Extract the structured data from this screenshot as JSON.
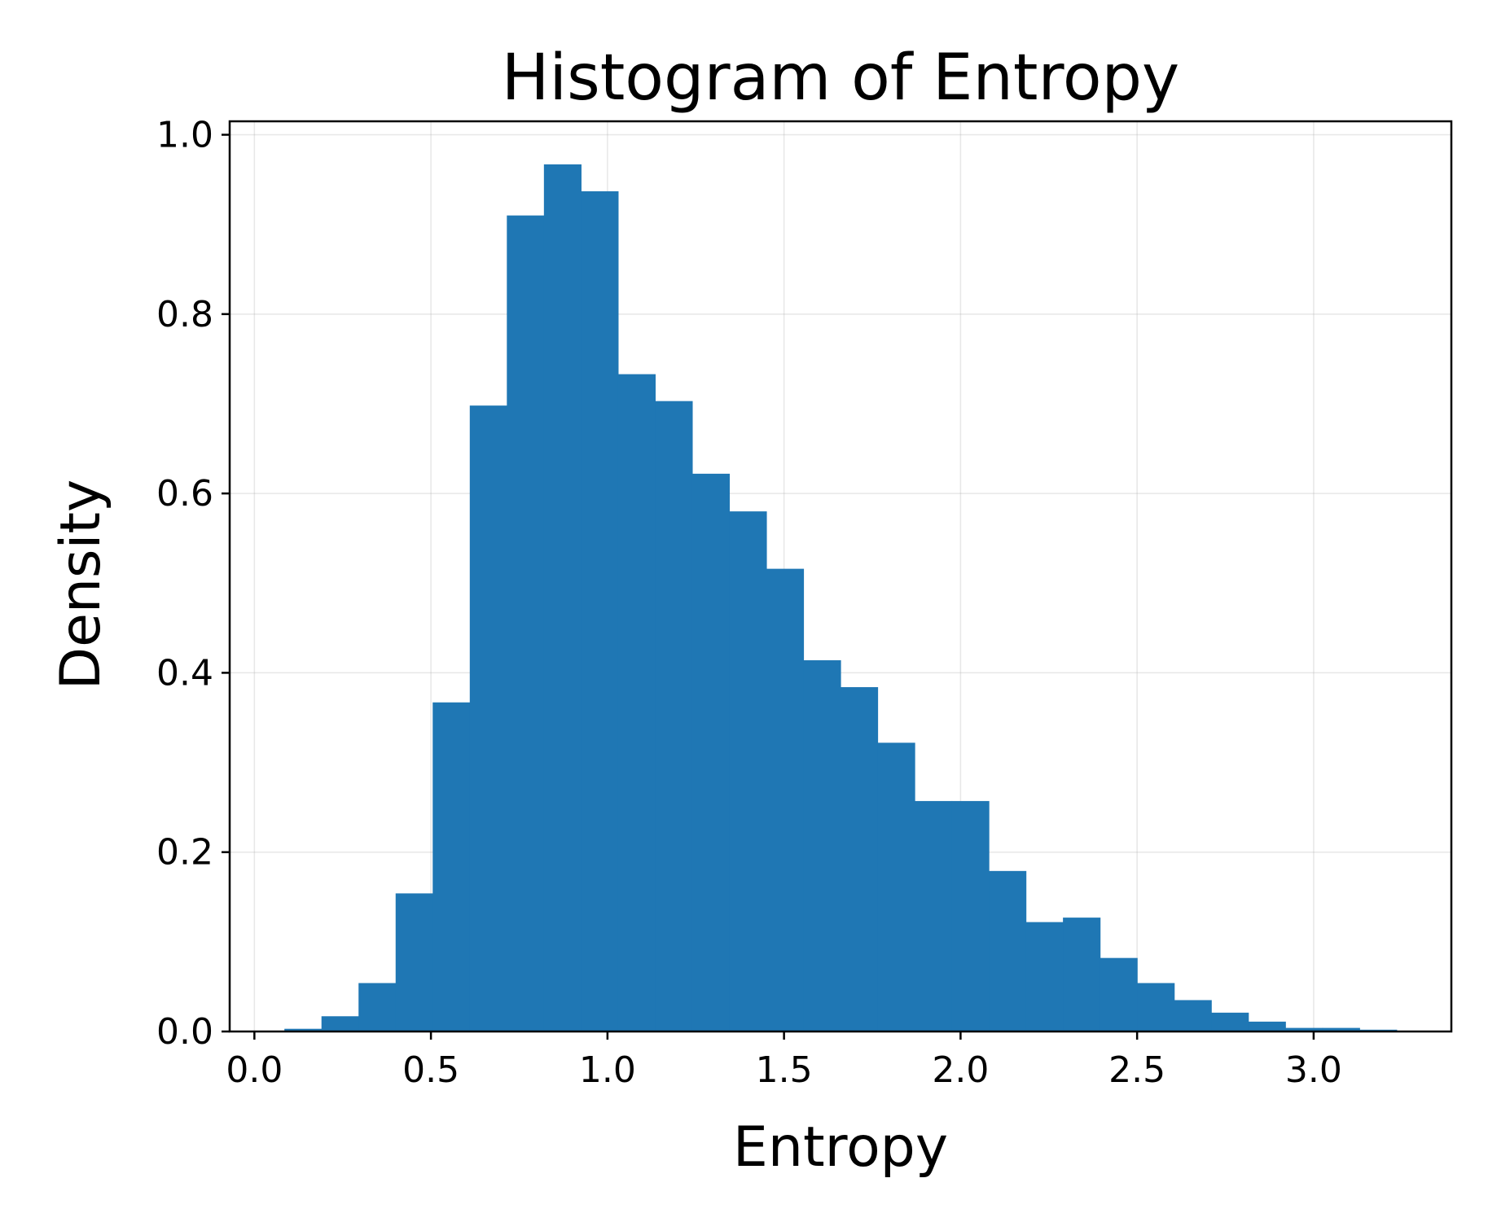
{
  "chart_data": {
    "type": "bar",
    "title": "Histogram of Entropy",
    "xlabel": "Entropy",
    "ylabel": "Density",
    "xlim": [
      -0.07,
      3.39
    ],
    "ylim": [
      0.0,
      1.015
    ],
    "x_ticks": [
      0.0,
      0.5,
      1.0,
      1.5,
      2.0,
      2.5,
      3.0
    ],
    "x_tick_labels": [
      "0.0",
      "0.5",
      "1.0",
      "1.5",
      "2.0",
      "2.5",
      "3.0"
    ],
    "y_ticks": [
      0.0,
      0.2,
      0.4,
      0.6,
      0.8,
      1.0
    ],
    "y_tick_labels": [
      "0.0",
      "0.2",
      "0.4",
      "0.6",
      "0.8",
      "1.0"
    ],
    "grid": true,
    "bar_color": "#1f77b4",
    "bins": {
      "edges": [
        0.085,
        0.19,
        0.295,
        0.4,
        0.505,
        0.61,
        0.715,
        0.82,
        0.925,
        1.03,
        1.135,
        1.24,
        1.345,
        1.45,
        1.555,
        1.66,
        1.765,
        1.87,
        1.975,
        2.08,
        2.185,
        2.29,
        2.395,
        2.5,
        2.605,
        2.71,
        2.815,
        2.92,
        3.025,
        3.13,
        3.235
      ],
      "values": [
        0.003,
        0.017,
        0.054,
        0.154,
        0.367,
        0.698,
        0.91,
        0.967,
        0.937,
        0.733,
        0.703,
        0.622,
        0.58,
        0.516,
        0.414,
        0.384,
        0.322,
        0.257,
        0.257,
        0.179,
        0.122,
        0.127,
        0.082,
        0.054,
        0.035,
        0.021,
        0.011,
        0.004,
        0.004,
        0.002
      ]
    }
  }
}
